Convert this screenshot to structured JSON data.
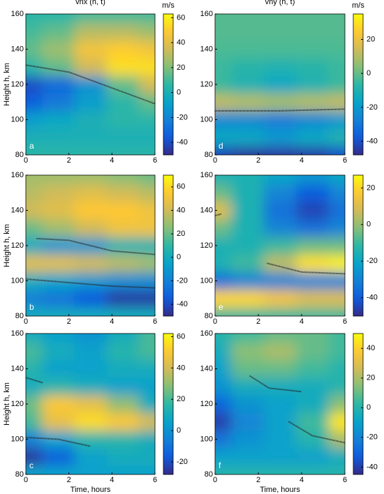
{
  "chart_data": [
    {
      "type": "heatmap",
      "title": "vnx (h, t)",
      "panel": "a",
      "ylabel": "Height h, km",
      "unit": "m/s",
      "x": [
        0,
        1.5,
        3,
        4.5,
        6
      ],
      "y": [
        80,
        90,
        100,
        110,
        120,
        130,
        140,
        150,
        160
      ],
      "z": [
        [
          5,
          5,
          5,
          5,
          5
        ],
        [
          0,
          0,
          0,
          0,
          0
        ],
        [
          -10,
          -5,
          0,
          5,
          5
        ],
        [
          -35,
          -25,
          -10,
          5,
          15
        ],
        [
          -40,
          -30,
          -15,
          15,
          35
        ],
        [
          5,
          15,
          35,
          55,
          55
        ],
        [
          15,
          25,
          45,
          50,
          45
        ],
        [
          10,
          15,
          30,
          30,
          25
        ],
        [
          5,
          5,
          10,
          10,
          10
        ]
      ],
      "zlim": [
        -50,
        63
      ],
      "zticks": [
        -40,
        -20,
        0,
        20,
        40,
        60
      ],
      "contours": [
        {
          "x": [
            0,
            2,
            4,
            6
          ],
          "y": [
            131,
            127,
            118,
            109
          ]
        }
      ],
      "xlim": [
        0,
        6
      ],
      "ylim": [
        80,
        160
      ],
      "xticks": [
        0,
        2,
        4,
        6
      ],
      "yticks": [
        80,
        100,
        120,
        140,
        160
      ]
    },
    {
      "type": "heatmap",
      "panel": "b",
      "ylabel": "Height h, km",
      "x": [
        0,
        1.5,
        3,
        4.5,
        6
      ],
      "y": [
        80,
        90,
        100,
        110,
        120,
        130,
        140,
        150,
        160
      ],
      "z": [
        [
          0,
          0,
          0,
          0,
          0
        ],
        [
          -20,
          -25,
          -35,
          -45,
          -45
        ],
        [
          0,
          -5,
          -10,
          -15,
          -15
        ],
        [
          45,
          45,
          40,
          35,
          30
        ],
        [
          0,
          -10,
          -10,
          5,
          5
        ],
        [
          20,
          30,
          40,
          50,
          50
        ],
        [
          40,
          45,
          55,
          55,
          50
        ],
        [
          35,
          40,
          45,
          40,
          35
        ],
        [
          30,
          30,
          30,
          25,
          20
        ]
      ],
      "zlim": [
        -50,
        70
      ],
      "zticks": [
        -40,
        -20,
        0,
        20,
        40,
        60
      ],
      "contours": [
        {
          "x": [
            0.5,
            2,
            4,
            6
          ],
          "y": [
            124,
            123,
            117,
            115
          ]
        },
        {
          "x": [
            0,
            2,
            4,
            6
          ],
          "y": [
            101,
            99,
            97,
            96
          ]
        }
      ],
      "xlim": [
        0,
        6
      ],
      "ylim": [
        80,
        160
      ],
      "xticks": [
        0,
        2,
        4,
        6
      ],
      "yticks": [
        80,
        100,
        120,
        140,
        160
      ]
    },
    {
      "type": "heatmap",
      "panel": "c",
      "ylabel": "Height h, km",
      "xlabel": "Time, hours",
      "x": [
        0,
        1.5,
        3,
        4.5,
        6
      ],
      "y": [
        80,
        90,
        100,
        110,
        120,
        130,
        140,
        150,
        160
      ],
      "z": [
        [
          5,
          5,
          5,
          5,
          5
        ],
        [
          -25,
          -15,
          5,
          10,
          10
        ],
        [
          -5,
          5,
          15,
          15,
          10
        ],
        [
          20,
          45,
          55,
          50,
          40
        ],
        [
          25,
          50,
          45,
          30,
          10
        ],
        [
          10,
          15,
          10,
          5,
          5
        ],
        [
          15,
          5,
          5,
          10,
          10
        ],
        [
          20,
          10,
          5,
          15,
          20
        ],
        [
          10,
          5,
          0,
          10,
          20
        ]
      ],
      "zlim": [
        -28,
        62
      ],
      "zticks": [
        -20,
        0,
        20,
        40,
        60
      ],
      "contours": [
        {
          "x": [
            0,
            0.8
          ],
          "y": [
            135,
            132
          ]
        },
        {
          "x": [
            0,
            1.5,
            3
          ],
          "y": [
            101,
            100,
            96
          ]
        }
      ],
      "xlim": [
        0,
        6
      ],
      "ylim": [
        80,
        160
      ],
      "xticks": [
        0,
        2,
        4,
        6
      ],
      "yticks": [
        80,
        100,
        120,
        140,
        160
      ]
    },
    {
      "type": "heatmap",
      "title": "vny (h, t)",
      "panel": "d",
      "unit": "m/s",
      "x": [
        0,
        1.5,
        3,
        4.5,
        6
      ],
      "y": [
        80,
        90,
        100,
        110,
        120,
        130,
        140,
        150,
        160
      ],
      "z": [
        [
          -42,
          -45,
          -45,
          -44,
          -40
        ],
        [
          -15,
          -15,
          -20,
          -15,
          -10
        ],
        [
          -25,
          -25,
          -28,
          -25,
          -20
        ],
        [
          12,
          10,
          8,
          10,
          12
        ],
        [
          -5,
          -10,
          -15,
          -10,
          -5
        ],
        [
          -5,
          -8,
          -10,
          -8,
          -5
        ],
        [
          -3,
          -3,
          -3,
          -3,
          -3
        ],
        [
          -2,
          -2,
          -2,
          -2,
          -2
        ],
        [
          -2,
          -2,
          -2,
          -2,
          -2
        ]
      ],
      "zlim": [
        -48,
        35
      ],
      "zticks": [
        -40,
        -20,
        0,
        20
      ],
      "contours": [
        {
          "x": [
            0,
            3,
            6
          ],
          "y": [
            105,
            105,
            106
          ]
        }
      ],
      "xlim": [
        0,
        6
      ],
      "ylim": [
        80,
        160
      ],
      "xticks": [
        0,
        2,
        4,
        6
      ],
      "yticks": [
        80,
        100,
        120,
        140,
        160
      ]
    },
    {
      "type": "heatmap",
      "panel": "e",
      "x": [
        0,
        1.5,
        3,
        4.5,
        6
      ],
      "y": [
        80,
        90,
        100,
        110,
        120,
        130,
        140,
        150,
        160
      ],
      "z": [
        [
          -10,
          -10,
          -10,
          -10,
          -10
        ],
        [
          20,
          20,
          15,
          10,
          10
        ],
        [
          -35,
          -30,
          -30,
          -30,
          -30
        ],
        [
          -15,
          -10,
          5,
          22,
          25
        ],
        [
          -15,
          -15,
          -10,
          -5,
          -5
        ],
        [
          -5,
          -15,
          -30,
          -35,
          -30
        ],
        [
          10,
          -15,
          -35,
          -45,
          -35
        ],
        [
          -5,
          -15,
          -30,
          -40,
          -30
        ],
        [
          -15,
          -15,
          -20,
          -25,
          -20
        ]
      ],
      "zlim": [
        -50,
        27
      ],
      "zticks": [
        -40,
        -20,
        0,
        20
      ],
      "contours": [
        {
          "x": [
            0,
            0.3
          ],
          "y": [
            137,
            138
          ]
        },
        {
          "x": [
            2.4,
            4,
            6
          ],
          "y": [
            110,
            105,
            104
          ]
        }
      ],
      "xlim": [
        0,
        6
      ],
      "ylim": [
        80,
        160
      ],
      "xticks": [
        0,
        2,
        4,
        6
      ],
      "yticks": [
        80,
        100,
        120,
        140,
        160
      ]
    },
    {
      "type": "heatmap",
      "panel": "f",
      "xlabel": "Time, hours",
      "x": [
        0,
        1.5,
        3,
        4.5,
        6
      ],
      "y": [
        80,
        90,
        100,
        110,
        120,
        130,
        140,
        150,
        160
      ],
      "z": [
        [
          0,
          0,
          0,
          0,
          0
        ],
        [
          -10,
          -10,
          -10,
          -10,
          -5
        ],
        [
          -25,
          -15,
          -10,
          0,
          20
        ],
        [
          -40,
          -20,
          -10,
          5,
          45
        ],
        [
          -30,
          -15,
          -10,
          -5,
          15
        ],
        [
          -15,
          -5,
          -5,
          -5,
          0
        ],
        [
          -10,
          10,
          10,
          5,
          0
        ],
        [
          -5,
          15,
          20,
          10,
          5
        ],
        [
          0,
          5,
          10,
          10,
          5
        ]
      ],
      "zlim": [
        -45,
        50
      ],
      "zticks": [
        -40,
        -20,
        0,
        20,
        40
      ],
      "contours": [
        {
          "x": [
            1.6,
            2.5,
            4
          ],
          "y": [
            136,
            129,
            127
          ]
        },
        {
          "x": [
            3.4,
            4.5,
            6
          ],
          "y": [
            110,
            102,
            98
          ]
        }
      ],
      "xlim": [
        0,
        6
      ],
      "ylim": [
        80,
        160
      ],
      "xticks": [
        0,
        2,
        4,
        6
      ],
      "yticks": [
        80,
        100,
        120,
        140,
        160
      ]
    }
  ]
}
